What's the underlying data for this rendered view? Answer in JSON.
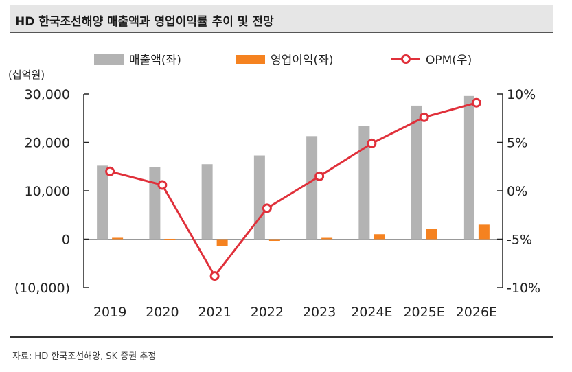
{
  "title": "HD 한국조선해양 매출액과 영업이익률 추이 및 전망",
  "source": "자료: HD 한국조선해양, SK 증권 추정",
  "chart_data": {
    "type": "bar+line",
    "categories": [
      "2019",
      "2020",
      "2021",
      "2022",
      "2023",
      "2024E",
      "2025E",
      "2026E"
    ],
    "left_unit": "(십억원)",
    "left_ylim": [
      -10000,
      30000
    ],
    "left_ticks": [
      {
        "value": 30000,
        "label": "30,000"
      },
      {
        "value": 20000,
        "label": "20,000"
      },
      {
        "value": 10000,
        "label": "10,000"
      },
      {
        "value": 0,
        "label": "0"
      },
      {
        "value": -10000,
        "label": "(10,000)"
      }
    ],
    "right_ylim": [
      -10,
      10
    ],
    "right_ticks": [
      {
        "value": 10,
        "label": "10%"
      },
      {
        "value": 5,
        "label": "5%"
      },
      {
        "value": 0,
        "label": "0%"
      },
      {
        "value": -5,
        "label": "-5%"
      },
      {
        "value": -10,
        "label": "-10%"
      }
    ],
    "series": [
      {
        "name": "매출액(좌)",
        "type": "bar",
        "axis": "left",
        "color": "#b3b3b3",
        "values": [
          15200,
          14900,
          15500,
          17300,
          21300,
          23400,
          27600,
          29600
        ]
      },
      {
        "name": "영업이익(좌)",
        "type": "bar",
        "axis": "left",
        "color": "#f58220",
        "values": [
          290,
          74,
          -1380,
          -356,
          282,
          1030,
          2100,
          3000
        ]
      },
      {
        "name": "OPM(우)",
        "type": "line",
        "axis": "right",
        "color": "#e0303a",
        "values": [
          2.0,
          0.6,
          -8.8,
          -1.8,
          1.5,
          4.9,
          7.6,
          9.1
        ]
      }
    ]
  }
}
